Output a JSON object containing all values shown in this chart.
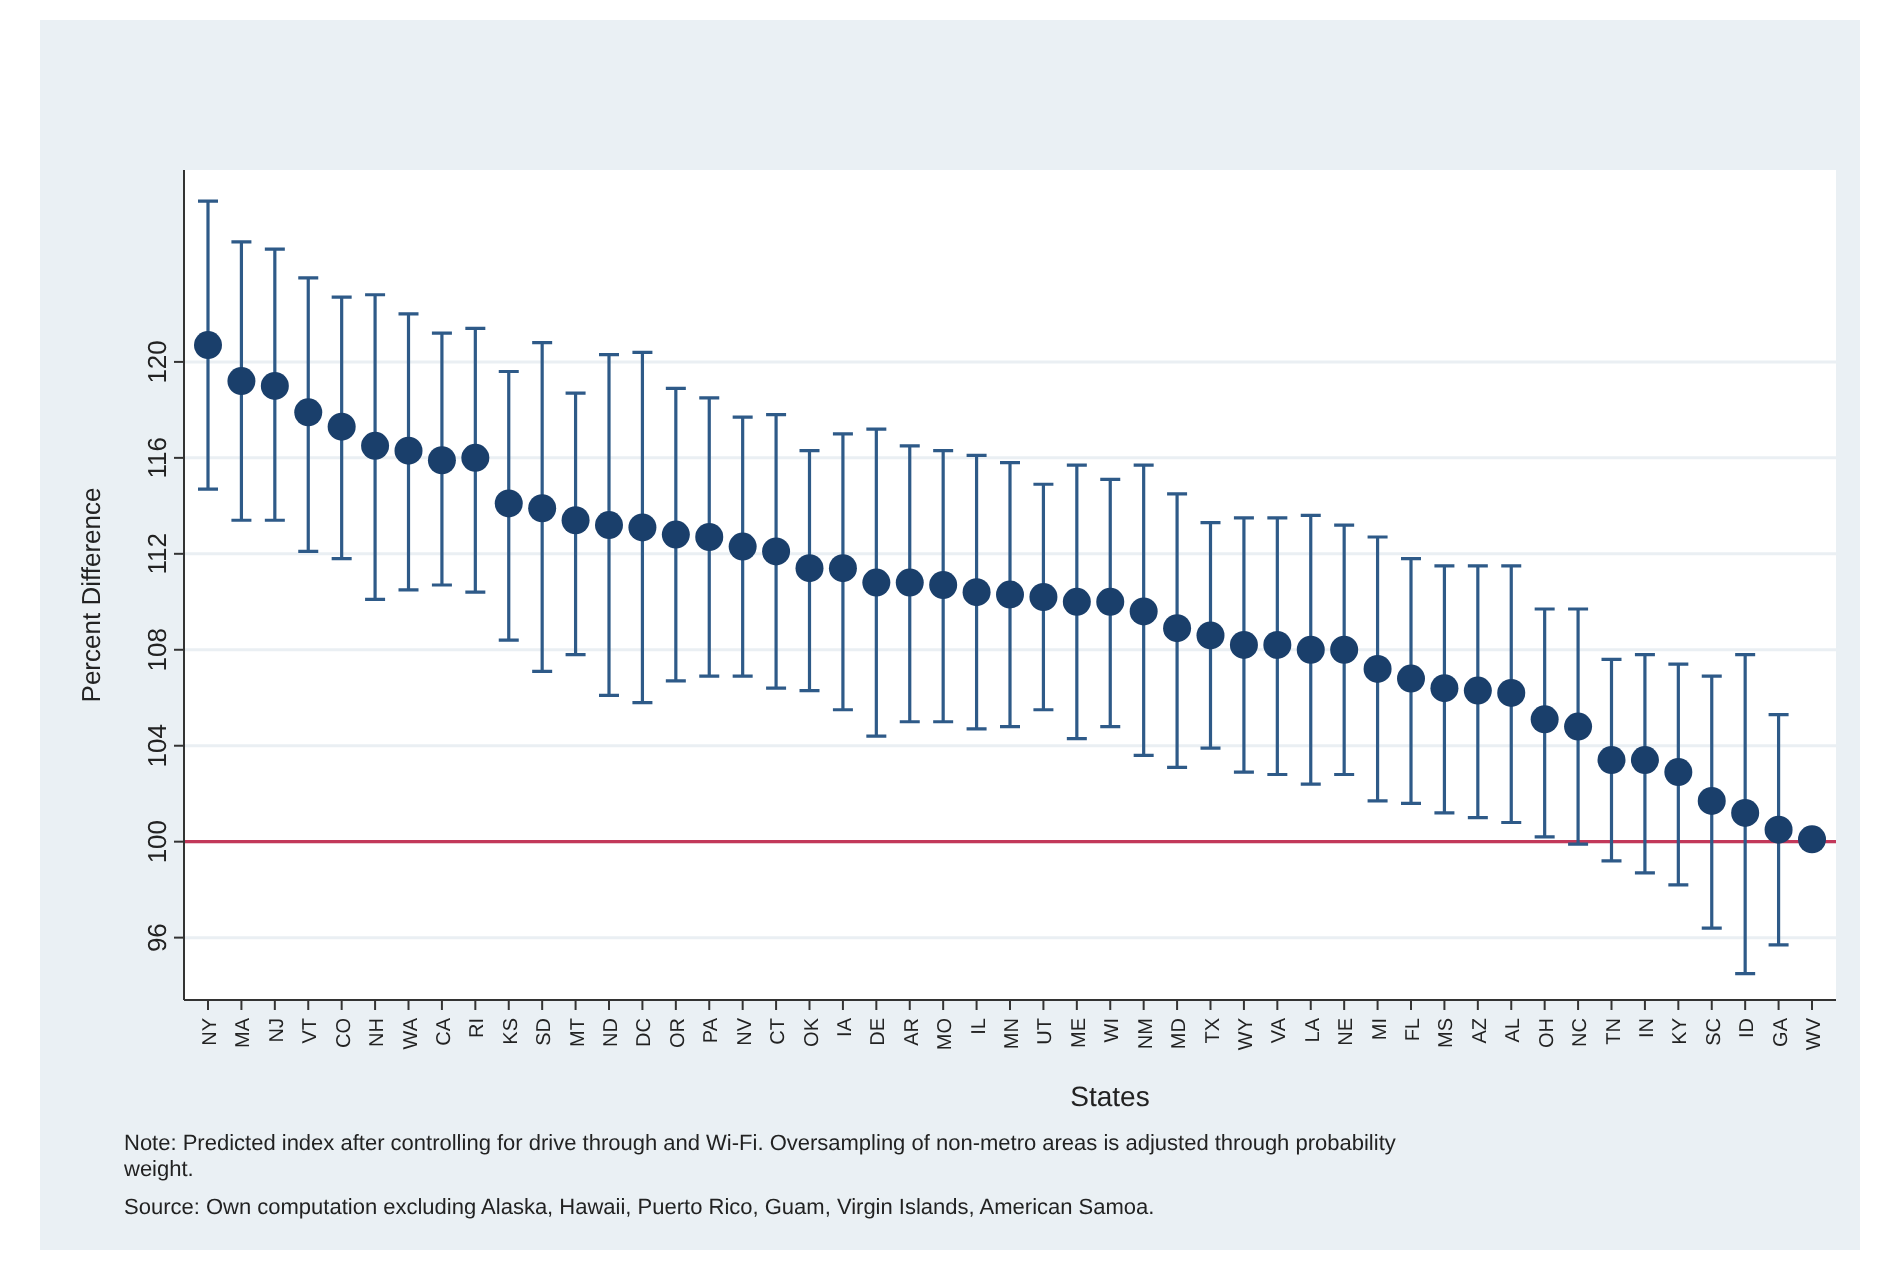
{
  "chart_data": {
    "type": "scatter",
    "xlabel": "States",
    "ylabel": "Percent Difference",
    "categories": [
      "NY",
      "MA",
      "NJ",
      "VT",
      "CO",
      "NH",
      "WA",
      "CA",
      "RI",
      "KS",
      "SD",
      "MT",
      "ND",
      "DC",
      "OR",
      "PA",
      "NV",
      "CT",
      "OK",
      "IA",
      "DE",
      "AR",
      "MO",
      "IL",
      "MN",
      "UT",
      "ME",
      "WI",
      "NM",
      "MD",
      "TX",
      "WY",
      "VA",
      "LA",
      "NE",
      "MI",
      "FL",
      "MS",
      "AZ",
      "AL",
      "OH",
      "NC",
      "TN",
      "IN",
      "KY",
      "SC",
      "ID",
      "GA",
      "WV"
    ],
    "values": [
      120.7,
      119.2,
      119.0,
      117.9,
      117.3,
      116.5,
      116.3,
      115.9,
      116.0,
      114.1,
      113.9,
      113.4,
      113.2,
      113.1,
      112.8,
      112.7,
      112.3,
      112.1,
      111.4,
      111.4,
      110.8,
      110.8,
      110.7,
      110.4,
      110.3,
      110.2,
      110.0,
      110.0,
      109.6,
      108.9,
      108.6,
      108.2,
      108.2,
      108.0,
      108.0,
      107.2,
      106.8,
      106.4,
      106.3,
      106.2,
      105.1,
      104.8,
      103.4,
      103.4,
      102.9,
      101.7,
      101.2,
      100.5,
      100.1
    ],
    "errors": [
      [
        114.7,
        126.7
      ],
      [
        113.4,
        125.0
      ],
      [
        113.4,
        124.7
      ],
      [
        112.1,
        123.5
      ],
      [
        111.8,
        122.7
      ],
      [
        110.1,
        122.8
      ],
      [
        110.5,
        122.0
      ],
      [
        110.7,
        121.2
      ],
      [
        110.4,
        121.4
      ],
      [
        108.4,
        119.6
      ],
      [
        107.1,
        120.8
      ],
      [
        107.8,
        118.7
      ],
      [
        106.1,
        120.3
      ],
      [
        105.8,
        120.4
      ],
      [
        106.7,
        118.9
      ],
      [
        106.9,
        118.5
      ],
      [
        106.9,
        117.7
      ],
      [
        106.4,
        117.8
      ],
      [
        106.3,
        116.3
      ],
      [
        105.5,
        117.0
      ],
      [
        104.4,
        117.2
      ],
      [
        105.0,
        116.5
      ],
      [
        105.0,
        116.3
      ],
      [
        104.7,
        116.1
      ],
      [
        104.8,
        115.8
      ],
      [
        105.5,
        114.9
      ],
      [
        104.3,
        115.7
      ],
      [
        104.8,
        115.1
      ],
      [
        103.6,
        115.7
      ],
      [
        103.1,
        114.5
      ],
      [
        103.9,
        113.3
      ],
      [
        102.9,
        113.5
      ],
      [
        102.8,
        113.5
      ],
      [
        102.4,
        113.6
      ],
      [
        102.8,
        113.2
      ],
      [
        101.7,
        112.7
      ],
      [
        101.6,
        111.8
      ],
      [
        101.2,
        111.5
      ],
      [
        101.0,
        111.5
      ],
      [
        100.8,
        111.5
      ],
      [
        100.2,
        109.7
      ],
      [
        99.9,
        109.7
      ],
      [
        99.2,
        107.6
      ],
      [
        98.7,
        107.8
      ],
      [
        98.2,
        107.4
      ],
      [
        96.4,
        106.9
      ],
      [
        94.5,
        107.8
      ],
      [
        95.7,
        105.3
      ],
      null
    ],
    "color": "#1a3f6b",
    "ylim": [
      93.4,
      128
    ],
    "yticks": [
      96,
      100,
      104,
      108,
      112,
      116,
      120
    ],
    "grid": "y",
    "marker": "circle",
    "ref_lines": [
      {
        "axis": "y",
        "value": 100,
        "color": "#c2385a"
      }
    ],
    "annotations": [
      "Note: Predicted index after controlling for drive through and Wi-Fi.  Oversampling of non-metro areas is adjusted through probability weight.",
      "Source: Own computation excluding Alaska, Hawaii, Puerto Rico, Guam, Virgin Islands, American Samoa."
    ]
  }
}
